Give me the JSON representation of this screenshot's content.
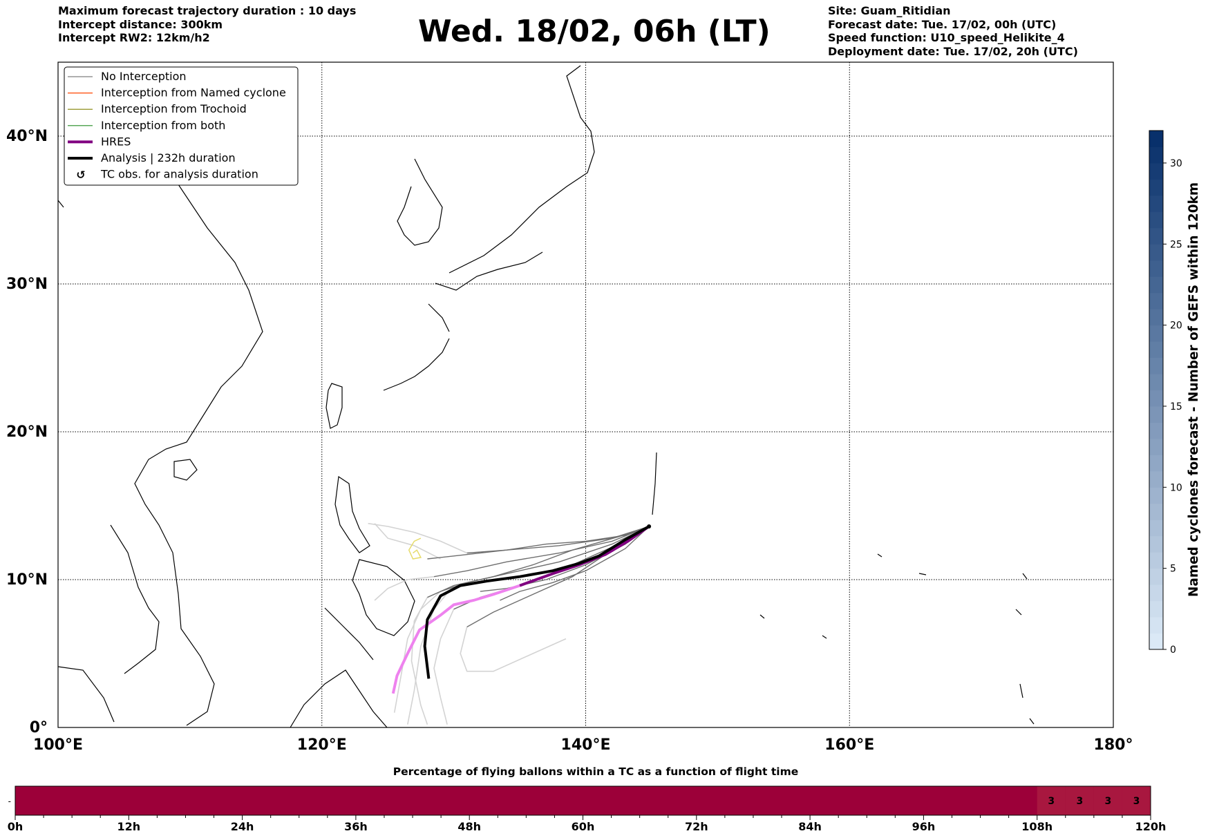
{
  "header": {
    "left": [
      "Maximum forecast trajectory duration : 10 days",
      "Intercept distance: 300km",
      "Intercept RW2: 12km/h2"
    ],
    "title": "Wed. 18/02, 06h (LT)",
    "right": [
      "Site: Guam_Ritidian",
      "Forecast date: Tue. 17/02, 00h (UTC)",
      "Speed function: U10_speed_Helikite_4",
      "Deployment date: Tue. 17/02, 20h (UTC)"
    ]
  },
  "colors": {
    "no_interception": "#7f7f7f",
    "named_cyclone": "#ff4500",
    "trochoid": "#808000",
    "both": "#228b22",
    "hres": "#800080",
    "analysis": "#000000",
    "light_track": "#d3d3d3",
    "hres_pink": "#ee82ee",
    "bar_fill": "#9c0039",
    "bar_fill_alt": "#a8173f"
  },
  "chart_data": [
    {
      "type": "map",
      "projection": "lon-lat",
      "xlim": [
        100,
        180
      ],
      "ylim": [
        0,
        45
      ],
      "x_ticks": [
        100,
        120,
        140,
        160,
        180
      ],
      "x_tick_labels": [
        "100°E",
        "120°E",
        "140°E",
        "160°E",
        "180°"
      ],
      "y_ticks": [
        0,
        10,
        20,
        30,
        40
      ],
      "y_tick_labels": [
        "0°",
        "10°N",
        "20°N",
        "30°N",
        "40°N"
      ],
      "grid": true,
      "legend_position": "top-left",
      "legend": [
        {
          "label": "No Interception",
          "style": "thin",
          "color": "#7f7f7f"
        },
        {
          "label": "Interception from Named cyclone",
          "style": "thin",
          "color": "#ff4500"
        },
        {
          "label": "Interception from Trochoid",
          "style": "thin",
          "color": "#808000"
        },
        {
          "label": "Interception from both",
          "style": "thin",
          "color": "#228b22"
        },
        {
          "label": "HRES",
          "style": "thick",
          "color": "#800080"
        },
        {
          "label": "Analysis | 232h duration",
          "style": "thick",
          "color": "#000000"
        },
        {
          "label": "TC obs. for analysis duration",
          "style": "symbol",
          "color": "#000000"
        }
      ],
      "site": {
        "name": "Guam_Ritidian",
        "lon": 144.8,
        "lat": 13.6
      },
      "analysis_track": [
        [
          144.8,
          13.6
        ],
        [
          143.0,
          12.7
        ],
        [
          141.0,
          11.6
        ],
        [
          139.5,
          11.1
        ],
        [
          137.5,
          10.6
        ],
        [
          135.0,
          10.2
        ],
        [
          132.5,
          9.9
        ],
        [
          130.5,
          9.6
        ],
        [
          129.0,
          8.9
        ],
        [
          128.0,
          7.3
        ],
        [
          127.8,
          5.5
        ],
        [
          128.1,
          3.3
        ]
      ],
      "hres_track": [
        [
          144.8,
          13.6
        ],
        [
          143.2,
          12.6
        ],
        [
          141.5,
          11.7
        ],
        [
          139.5,
          11.0
        ],
        [
          137.5,
          10.4
        ],
        [
          135.0,
          9.6
        ],
        [
          133.0,
          9.0
        ],
        [
          131.5,
          8.6
        ],
        [
          130.0,
          8.3
        ],
        [
          129.0,
          7.6
        ],
        [
          127.4,
          6.6
        ],
        [
          126.5,
          5.0
        ],
        [
          125.7,
          3.5
        ],
        [
          125.4,
          2.3
        ]
      ],
      "ensemble_tracks": [
        [
          [
            144.8,
            13.6
          ],
          [
            142,
            12.8
          ],
          [
            138,
            12.3
          ],
          [
            134,
            12.0
          ],
          [
            130,
            11.6
          ],
          [
            128,
            11.4
          ]
        ],
        [
          [
            144.8,
            13.6
          ],
          [
            142,
            12.6
          ],
          [
            138,
            11.8
          ],
          [
            134,
            11.2
          ],
          [
            131,
            10.6
          ],
          [
            128.5,
            10.2
          ]
        ],
        [
          [
            144.8,
            13.6
          ],
          [
            142,
            12.4
          ],
          [
            138,
            11.2
          ],
          [
            134,
            10.4
          ],
          [
            131,
            9.8
          ],
          [
            129,
            9.2
          ]
        ],
        [
          [
            144.8,
            13.6
          ],
          [
            142,
            12.2
          ],
          [
            138,
            10.6
          ],
          [
            135,
            9.6
          ],
          [
            132,
            8.8
          ],
          [
            130,
            8.0
          ]
        ],
        [
          [
            144.8,
            13.6
          ],
          [
            142,
            12.0
          ],
          [
            139,
            10.2
          ],
          [
            136,
            9.0
          ],
          [
            133,
            7.8
          ],
          [
            131,
            6.8
          ]
        ],
        [
          [
            144.8,
            13.6
          ],
          [
            143,
            12.4
          ],
          [
            140,
            11.0
          ],
          [
            137,
            10.0
          ],
          [
            134,
            9.4
          ],
          [
            132,
            9.2
          ]
        ],
        [
          [
            144.8,
            13.6
          ],
          [
            143,
            13.0
          ],
          [
            140,
            12.6
          ],
          [
            137,
            12.4
          ],
          [
            134,
            12.0
          ],
          [
            131,
            11.8
          ]
        ],
        [
          [
            144.8,
            13.6
          ],
          [
            142.5,
            12.9
          ],
          [
            139,
            12.0
          ],
          [
            136,
            11.0
          ],
          [
            133,
            10.2
          ],
          [
            130,
            9.6
          ],
          [
            128,
            8.8
          ]
        ],
        [
          [
            144.8,
            13.6
          ],
          [
            143,
            12.1
          ],
          [
            140,
            10.6
          ],
          [
            137.5,
            9.8
          ],
          [
            135,
            9.2
          ],
          [
            133.5,
            8.6
          ]
        ]
      ],
      "light_tracks": [
        [
          [
            129,
            11.4
          ],
          [
            127,
            12.3
          ],
          [
            125,
            12.8
          ],
          [
            124,
            13.8
          ]
        ],
        [
          [
            128.5,
            10.2
          ],
          [
            126.5,
            10.0
          ],
          [
            125,
            9.4
          ],
          [
            124,
            8.6
          ]
        ],
        [
          [
            129,
            9.2
          ],
          [
            127.5,
            8.0
          ],
          [
            126.5,
            6.0
          ],
          [
            126,
            3.5
          ],
          [
            125.5,
            1.0
          ]
        ],
        [
          [
            130,
            8.0
          ],
          [
            129,
            6.0
          ],
          [
            128.5,
            4.0
          ],
          [
            129,
            2.0
          ],
          [
            129.5,
            0.2
          ]
        ],
        [
          [
            131,
            6.8
          ],
          [
            130.5,
            5.0
          ],
          [
            131,
            3.8
          ],
          [
            133,
            3.8
          ],
          [
            136,
            5.0
          ],
          [
            138.5,
            6.0
          ]
        ],
        [
          [
            130,
            9.6
          ],
          [
            128.5,
            8.0
          ],
          [
            127.5,
            5.5
          ],
          [
            127,
            2.5
          ],
          [
            126.5,
            0.2
          ]
        ],
        [
          [
            131,
            11.8
          ],
          [
            129,
            12.6
          ],
          [
            127,
            13.2
          ],
          [
            125,
            13.6
          ],
          [
            123.5,
            13.8
          ]
        ],
        [
          [
            128,
            8.8
          ],
          [
            127,
            7.2
          ],
          [
            126.8,
            4.5
          ],
          [
            127.5,
            1.5
          ],
          [
            128,
            0.2
          ]
        ]
      ],
      "trochoid_loop": [
        [
          127.5,
          12.8
        ],
        [
          127.0,
          12.6
        ],
        [
          126.6,
          12.0
        ],
        [
          126.9,
          11.4
        ],
        [
          127.5,
          11.5
        ],
        [
          127.2,
          12.0
        ],
        [
          126.9,
          11.8
        ]
      ]
    },
    {
      "type": "colorbar",
      "label": "Named cyclones forecast - Number of GEFS within 120km",
      "ticks": [
        0,
        5,
        10,
        15,
        20,
        25,
        30
      ],
      "range": [
        0,
        32
      ],
      "color_low": "#dbe9f6",
      "color_high": "#08306b"
    },
    {
      "type": "bar",
      "title": "Percentage of flying ballons within a TC as a function of flight time",
      "x_ticks": [
        "0h",
        "12h",
        "24h",
        "36h",
        "48h",
        "60h",
        "72h",
        "84h",
        "96h",
        "108h",
        "120h"
      ],
      "xlim": [
        0,
        120
      ],
      "segment_hours": 3,
      "segment_labels": [
        {
          "hour": 111,
          "value": "3"
        },
        {
          "hour": 114,
          "value": "3"
        },
        {
          "hour": 117,
          "value": "3"
        },
        {
          "hour": 120,
          "value": "3"
        }
      ],
      "y_tick": "-"
    }
  ]
}
